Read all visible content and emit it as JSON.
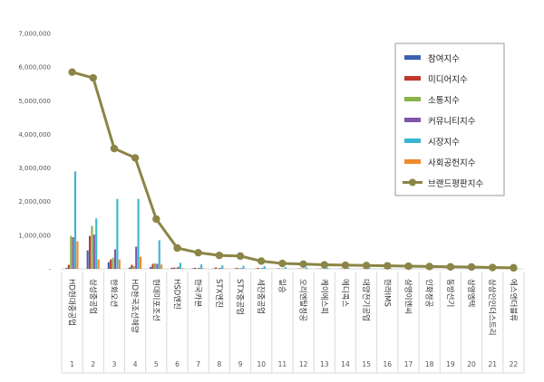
{
  "chart_data": {
    "type": "bar",
    "title": "",
    "xlabel": "",
    "ylabel": "",
    "ylim": [
      0,
      7000000
    ],
    "yticks": [
      0,
      1000000,
      2000000,
      3000000,
      4000000,
      5000000,
      6000000,
      7000000
    ],
    "ytick_labels": [
      "-",
      "1,000,000",
      "2,000,000",
      "3,000,000",
      "4,000,000",
      "5,000,000",
      "6,000,000",
      "7,000,000"
    ],
    "grid": false,
    "legend_position": "top-right",
    "numbers": [
      "1",
      "2",
      "3",
      "4",
      "5",
      "6",
      "7",
      "8",
      "9",
      "10",
      "11",
      "12",
      "13",
      "14",
      "15",
      "16",
      "17",
      "18",
      "19",
      "20",
      "21",
      "22"
    ],
    "categories": [
      "HD현대중공업",
      "삼성중공업",
      "한화오션",
      "HD한국조선해양",
      "현대미포조선",
      "HSD엔진",
      "한국카본",
      "STX엔진",
      "STX중공업",
      "세진중공업",
      "일승",
      "오리엔탈정공",
      "케이에스피",
      "메디콕스",
      "대양전기공업",
      "한라IMS",
      "삼영이엔씨",
      "인화정공",
      "동방선기",
      "삼영엠텍",
      "상상인인더스트리",
      "에스앤더블류"
    ],
    "series": [
      {
        "name": "참여지수",
        "color": "#3b63b0",
        "values": [
          30000,
          550000,
          200000,
          40000,
          60000,
          30000,
          15000,
          10000,
          10000,
          8000,
          6000,
          6000,
          5000,
          5000,
          4000,
          4000,
          3000,
          3000,
          3000,
          3000,
          2000,
          2000
        ]
      },
      {
        "name": "미디어지수",
        "color": "#c0392b",
        "values": [
          120000,
          980000,
          280000,
          120000,
          150000,
          40000,
          30000,
          40000,
          30000,
          30000,
          15000,
          12000,
          10000,
          10000,
          9000,
          9000,
          8000,
          7000,
          7000,
          6000,
          5000,
          5000
        ]
      },
      {
        "name": "소통지수",
        "color": "#8ab34a",
        "values": [
          980000,
          1280000,
          330000,
          80000,
          160000,
          30000,
          20000,
          20000,
          20000,
          15000,
          10000,
          8000,
          8000,
          7000,
          6000,
          6000,
          5000,
          5000,
          5000,
          4000,
          3000,
          3000
        ]
      },
      {
        "name": "커뮤니티지수",
        "color": "#7e57a8",
        "values": [
          940000,
          1020000,
          580000,
          660000,
          150000,
          60000,
          30000,
          30000,
          20000,
          20000,
          10000,
          8000,
          8000,
          7000,
          6000,
          6000,
          5000,
          5000,
          5000,
          4000,
          3000,
          3000
        ]
      },
      {
        "name": "시장지수",
        "color": "#3bb5cf",
        "values": [
          2900000,
          1500000,
          2080000,
          2080000,
          850000,
          180000,
          130000,
          100000,
          90000,
          80000,
          50000,
          40000,
          35000,
          30000,
          25000,
          22000,
          20000,
          18000,
          16000,
          14000,
          12000,
          10000
        ]
      },
      {
        "name": "사회공헌지수",
        "color": "#f08a2b",
        "values": [
          820000,
          280000,
          280000,
          360000,
          130000,
          20000,
          20000,
          10000,
          10000,
          10000,
          5000,
          5000,
          5000,
          5000,
          4000,
          4000,
          3000,
          3000,
          3000,
          3000,
          2000,
          2000
        ]
      }
    ],
    "line": {
      "name": "브랜드평판지수",
      "color": "#8b8547",
      "values": [
        5850000,
        5680000,
        3580000,
        3300000,
        1480000,
        620000,
        480000,
        400000,
        380000,
        230000,
        160000,
        140000,
        120000,
        110000,
        100000,
        90000,
        80000,
        70000,
        60000,
        55000,
        40000,
        30000
      ]
    }
  }
}
